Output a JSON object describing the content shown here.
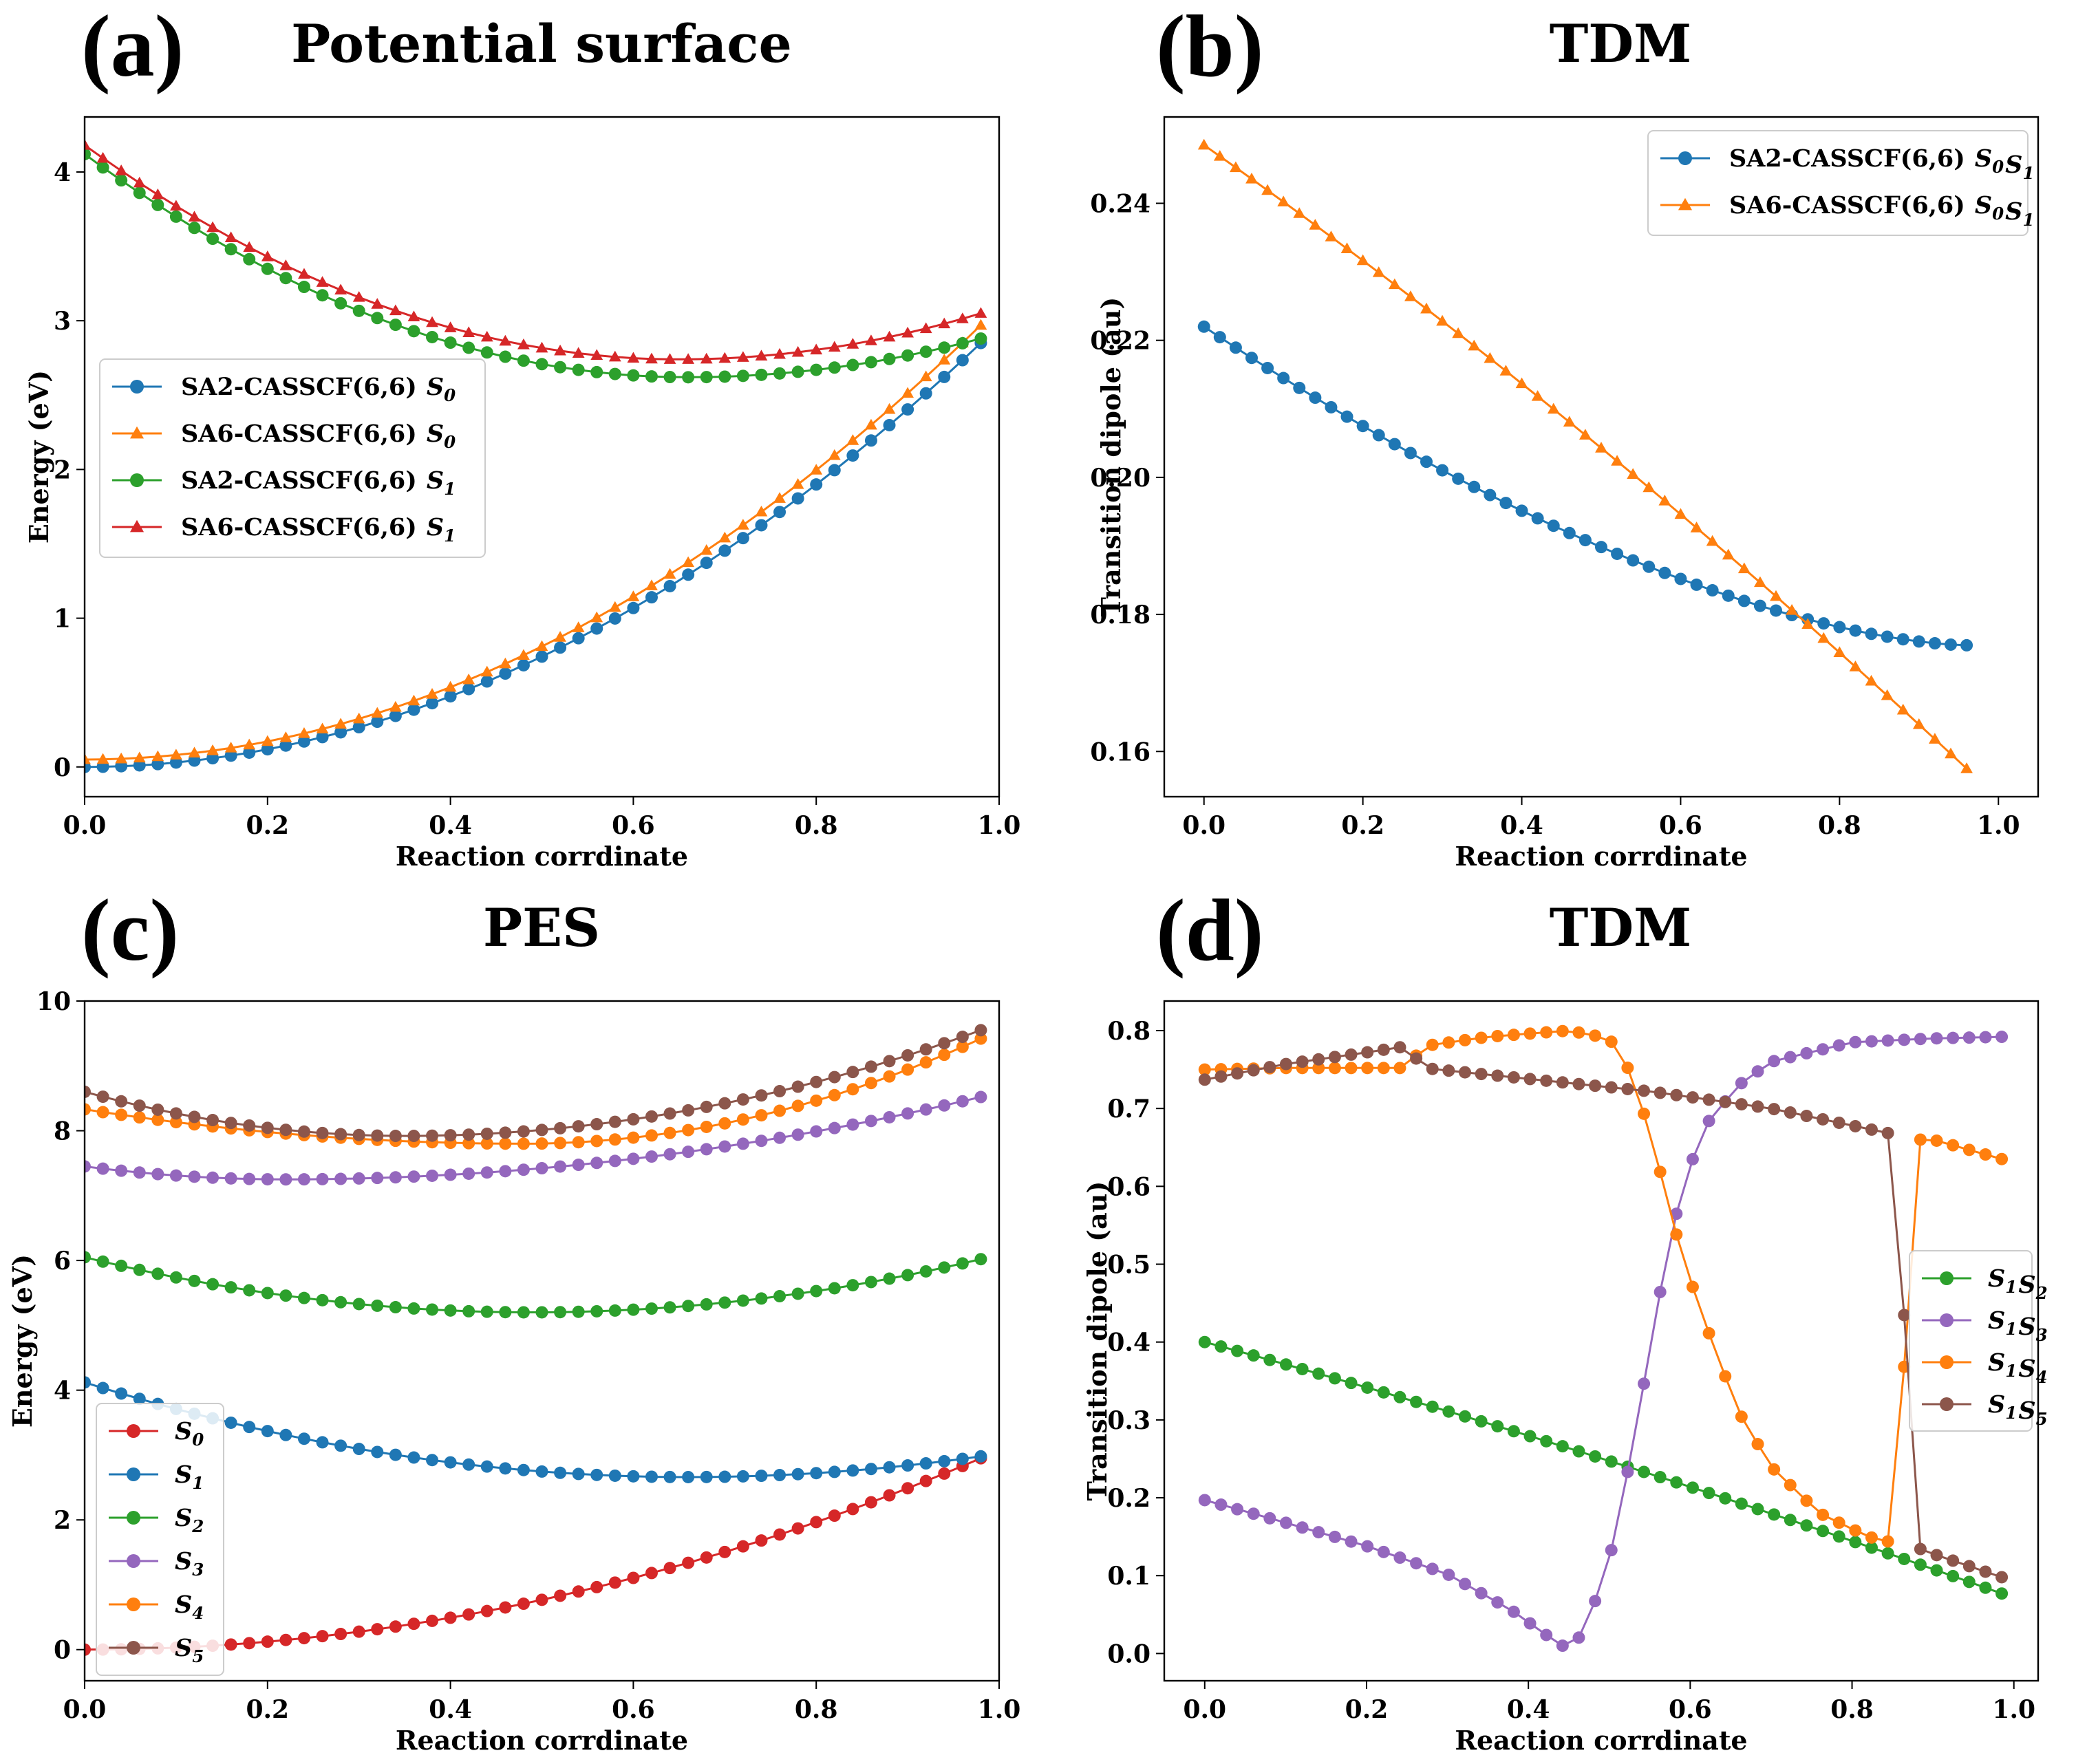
{
  "figure": {
    "letters": [
      "(a)",
      "(b)",
      "(c)",
      "(d)"
    ]
  },
  "chart_data": [
    {
      "type": "line",
      "panel": "a",
      "title": "Potential surface",
      "xlabel": "Reaction corrdinate",
      "ylabel": "Energy (eV)",
      "xlim": [
        0.0,
        1.0
      ],
      "ylim": [
        -0.2,
        4.37
      ],
      "xticks": [
        0.0,
        0.2,
        0.4,
        0.6,
        0.8,
        1.0
      ],
      "xtick_labels": [
        "0.0",
        "0.2",
        "0.4",
        "0.6",
        "0.8",
        "1.0"
      ],
      "yticks": [
        0,
        1,
        2,
        3,
        4
      ],
      "ytick_labels": [
        "0",
        "1",
        "2",
        "3",
        "4"
      ],
      "legend_position": "center-left",
      "series": [
        {
          "name": "SA2-CASSCF(6,6)",
          "state": "0",
          "color": "#1f77b4",
          "marker": "circle",
          "x_start": 0.0,
          "x_end": 0.98,
          "points": 50,
          "kind": "parabola",
          "y_start": 0.0,
          "y_end": 2.85
        },
        {
          "name": "SA6-CASSCF(6,6)",
          "state": "0",
          "color": "#ff7f0e",
          "marker": "triangle",
          "x_start": 0.0,
          "x_end": 0.98,
          "points": 50,
          "kind": "parabola",
          "y_start": 0.05,
          "y_end": 2.97
        },
        {
          "name": "SA2-CASSCF(6,6)",
          "state": "1",
          "color": "#2ca02c",
          "marker": "circle",
          "x_start": 0.0,
          "x_end": 0.98,
          "points": 50,
          "kind": "quadmin",
          "y_start": 4.12,
          "x_min": 0.66,
          "y_min": 2.62,
          "y_end": 2.88
        },
        {
          "name": "SA6-CASSCF(6,6)",
          "state": "1",
          "color": "#d62728",
          "marker": "triangle",
          "x_start": 0.0,
          "x_end": 0.98,
          "points": 50,
          "kind": "quadmin",
          "y_start": 4.18,
          "x_min": 0.65,
          "y_min": 2.74,
          "y_end": 3.05
        }
      ]
    },
    {
      "type": "line",
      "panel": "b",
      "title": "TDM",
      "xlabel": "Reaction corrdinate",
      "ylabel": "Transition dipole (au)",
      "xlim": [
        -0.05,
        1.05
      ],
      "ylim": [
        0.1534,
        0.2526
      ],
      "xticks": [
        0.0,
        0.2,
        0.4,
        0.6,
        0.8,
        1.0
      ],
      "xtick_labels": [
        "0.0",
        "0.2",
        "0.4",
        "0.6",
        "0.8",
        "1.0"
      ],
      "yticks": [
        0.16,
        0.18,
        0.2,
        0.22,
        0.24
      ],
      "ytick_labels": [
        "0.16",
        "0.18",
        "0.20",
        "0.22",
        "0.24"
      ],
      "legend_position": "top-right",
      "series": [
        {
          "name": "SA2-CASSCF(6,6)",
          "state": "01",
          "color": "#1f77b4",
          "marker": "circle",
          "x_start": 0.0,
          "x_end": 0.96,
          "points": 49,
          "kind": "decay",
          "y_start": 0.222,
          "y_end": 0.1755
        },
        {
          "name": "SA6-CASSCF(6,6)",
          "state": "01",
          "color": "#ff7f0e",
          "marker": "triangle",
          "x_start": 0.0,
          "x_end": 0.96,
          "points": 49,
          "kind": "sag",
          "y_start": 0.2485,
          "y_end": 0.1575
        }
      ]
    },
    {
      "type": "line",
      "panel": "c",
      "title": "PES",
      "xlabel": "Reaction corrdinate",
      "ylabel": "Energy (eV)",
      "xlim": [
        0.0,
        1.0
      ],
      "ylim": [
        -0.48,
        10.0
      ],
      "xticks": [
        0.0,
        0.2,
        0.4,
        0.6,
        0.8,
        1.0
      ],
      "xtick_labels": [
        "0.0",
        "0.2",
        "0.4",
        "0.6",
        "0.8",
        "1.0"
      ],
      "yticks": [
        0,
        2,
        4,
        6,
        8,
        10
      ],
      "ytick_labels": [
        "0",
        "2",
        "4",
        "6",
        "8",
        "10"
      ],
      "legend_position": "lower-left",
      "series": [
        {
          "name": "",
          "state": "0",
          "color": "#d62728",
          "marker": "circle",
          "x_start": 0.0,
          "x_end": 0.98,
          "points": 50,
          "kind": "parabola",
          "y_start": 0.0,
          "y_end": 2.95
        },
        {
          "name": "",
          "state": "1",
          "color": "#1f77b4",
          "marker": "circle",
          "x_start": 0.0,
          "x_end": 0.98,
          "points": 50,
          "kind": "quadmin",
          "y_start": 4.12,
          "x_min": 0.66,
          "y_min": 2.66,
          "y_end": 2.98
        },
        {
          "name": "",
          "state": "2",
          "color": "#2ca02c",
          "marker": "circle",
          "x_start": 0.0,
          "x_end": 0.98,
          "points": 50,
          "kind": "quadmin",
          "y_start": 6.05,
          "x_min": 0.49,
          "y_min": 5.2,
          "y_end": 6.02
        },
        {
          "name": "",
          "state": "3",
          "color": "#9467bd",
          "marker": "circle",
          "x_start": 0.0,
          "x_end": 0.98,
          "points": 50,
          "kind": "quadmin",
          "y_start": 7.45,
          "x_min": 0.22,
          "y_min": 7.25,
          "y_end": 8.52
        },
        {
          "name": "",
          "state": "4",
          "color": "#ff7f0e",
          "marker": "circle",
          "x_start": 0.0,
          "x_end": 0.98,
          "points": 50,
          "kind": "quadmin",
          "y_start": 8.33,
          "x_min": 0.48,
          "y_min": 7.8,
          "y_end": 9.42
        },
        {
          "name": "",
          "state": "5",
          "color": "#8c564b",
          "marker": "circle",
          "x_start": 0.0,
          "x_end": 0.98,
          "points": 50,
          "kind": "quadmin",
          "y_start": 8.6,
          "x_min": 0.35,
          "y_min": 7.92,
          "y_end": 9.55
        }
      ]
    },
    {
      "type": "line",
      "panel": "d",
      "title": "TDM",
      "xlabel": "Reaction corrdinate",
      "ylabel": "Transition dipole (au)",
      "xlim": [
        -0.05,
        1.03
      ],
      "ylim": [
        -0.035,
        0.838
      ],
      "xticks": [
        0.0,
        0.2,
        0.4,
        0.6,
        0.8,
        1.0
      ],
      "xtick_labels": [
        "0.0",
        "0.2",
        "0.4",
        "0.6",
        "0.8",
        "1.0"
      ],
      "yticks": [
        0.0,
        0.1,
        0.2,
        0.3,
        0.4,
        0.5,
        0.6,
        0.7,
        0.8
      ],
      "ytick_labels": [
        "0.0",
        "0.1",
        "0.2",
        "0.3",
        "0.4",
        "0.5",
        "0.6",
        "0.7",
        "0.8"
      ],
      "legend_position": "center-right",
      "series": [
        {
          "name": "",
          "state": "12",
          "color": "#2ca02c",
          "marker": "circle",
          "x_start": 0.0,
          "x_end": 0.985,
          "points": 50,
          "kind": "sag",
          "y_start": 0.4,
          "y_end": 0.077
        },
        {
          "name": "",
          "state": "13",
          "color": "#9467bd",
          "marker": "circle",
          "x_start": 0.0,
          "x_end": 0.985,
          "points": 50,
          "kind": "keys",
          "keys": [
            [
              0.0,
              0.197
            ],
            [
              0.1,
              0.168
            ],
            [
              0.2,
              0.138
            ],
            [
              0.3,
              0.102
            ],
            [
              0.38,
              0.055
            ],
            [
              0.43,
              0.018
            ],
            [
              0.45,
              0.005
            ],
            [
              0.47,
              0.03
            ],
            [
              0.5,
              0.12
            ],
            [
              0.53,
              0.27
            ],
            [
              0.56,
              0.45
            ],
            [
              0.59,
              0.6
            ],
            [
              0.62,
              0.68
            ],
            [
              0.66,
              0.73
            ],
            [
              0.7,
              0.76
            ],
            [
              0.8,
              0.785
            ],
            [
              0.9,
              0.79
            ],
            [
              0.985,
              0.792
            ]
          ]
        },
        {
          "name": "",
          "state": "14",
          "color": "#ff7f0e",
          "marker": "circle",
          "x_start": 0.0,
          "x_end": 0.985,
          "points": 50,
          "kind": "keys",
          "keys": [
            [
              0.0,
              0.75
            ],
            [
              0.1,
              0.752
            ],
            [
              0.25,
              0.752
            ],
            [
              0.27,
              0.78
            ],
            [
              0.35,
              0.792
            ],
            [
              0.45,
              0.8
            ],
            [
              0.5,
              0.79
            ],
            [
              0.53,
              0.74
            ],
            [
              0.56,
              0.63
            ],
            [
              0.59,
              0.51
            ],
            [
              0.62,
              0.42
            ],
            [
              0.66,
              0.31
            ],
            [
              0.7,
              0.24
            ],
            [
              0.76,
              0.18
            ],
            [
              0.82,
              0.15
            ],
            [
              0.86,
              0.14
            ],
            [
              0.87,
              0.66
            ],
            [
              0.9,
              0.66
            ],
            [
              0.985,
              0.635
            ]
          ]
        },
        {
          "name": "",
          "state": "15",
          "color": "#8c564b",
          "marker": "circle",
          "x_start": 0.0,
          "x_end": 0.985,
          "points": 50,
          "kind": "keys",
          "keys": [
            [
              0.0,
              0.737
            ],
            [
              0.1,
              0.757
            ],
            [
              0.2,
              0.772
            ],
            [
              0.25,
              0.78
            ],
            [
              0.27,
              0.752
            ],
            [
              0.4,
              0.738
            ],
            [
              0.55,
              0.722
            ],
            [
              0.7,
              0.7
            ],
            [
              0.86,
              0.665
            ],
            [
              0.87,
              0.14
            ],
            [
              0.9,
              0.128
            ],
            [
              0.985,
              0.098
            ]
          ]
        }
      ]
    }
  ]
}
